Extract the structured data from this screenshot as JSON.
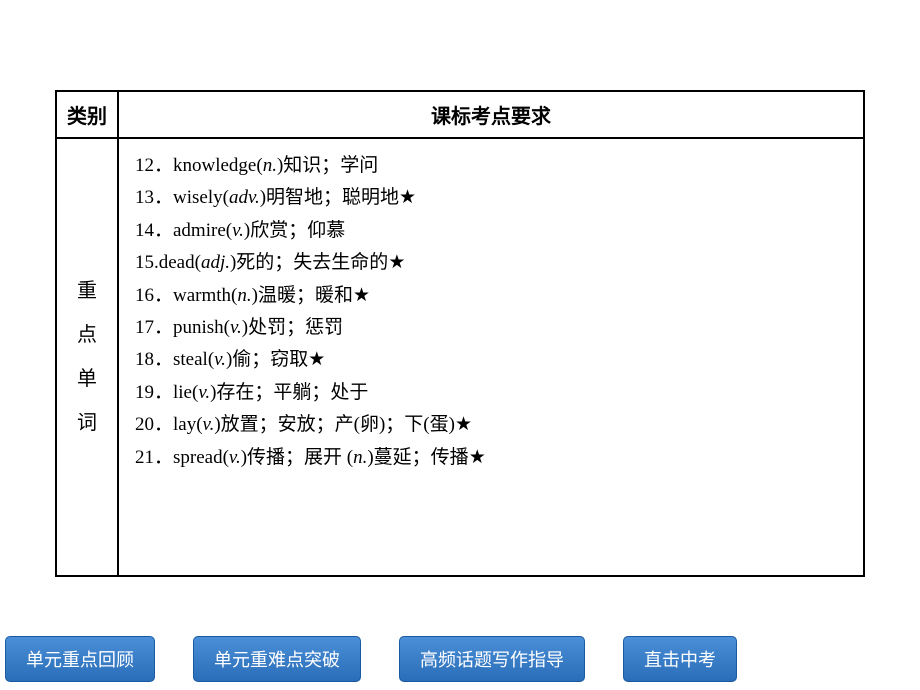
{
  "table": {
    "header": {
      "left": "类别",
      "right": "课标考点要求"
    },
    "category": [
      "重",
      "点",
      "单",
      "词"
    ],
    "items": [
      {
        "num": "12．",
        "word": "knowledge",
        "pos": "n.",
        "meaning": "知识；学问",
        "star": false
      },
      {
        "num": "13．",
        "word": "wisely",
        "pos": "adv.",
        "meaning": "明智地；聪明地",
        "star": true
      },
      {
        "num": "14．",
        "word": "admire",
        "pos": "v.",
        "meaning": "欣赏；仰慕",
        "star": false
      },
      {
        "num": "15.",
        "word": "dead",
        "pos": "adj.",
        "meaning": "死的；失去生命的",
        "star": true
      },
      {
        "num": "16．",
        "word": "warmth",
        "pos": "n.",
        "meaning": "温暖；暖和",
        "star": true
      },
      {
        "num": "17．",
        "word": "punish",
        "pos": "v.",
        "meaning": "处罚；惩罚",
        "star": false
      },
      {
        "num": "18．",
        "word": "steal",
        "pos": "v.",
        "meaning": "偷；窃取",
        "star": true
      },
      {
        "num": "19．",
        "word": "lie",
        "pos": "v.",
        "meaning": "存在；平躺；处于",
        "star": false
      },
      {
        "num": "20．",
        "word": "lay",
        "pos": "v.",
        "meaning": "放置；安放；产(卵)；下(蛋)",
        "star": true
      },
      {
        "num": "21．",
        "word": "spread",
        "pos": "v.",
        "meaning_v": "传播；展开",
        "pos2": "n.",
        "meaning_n": "蔓延；传播",
        "star": true
      }
    ]
  },
  "nav": {
    "buttons": [
      "单元重点回顾",
      "单元重难点突破",
      "高频话题写作指导",
      "直击中考"
    ]
  },
  "colors": {
    "border": "#000000",
    "background": "#ffffff",
    "button_gradient_top": "#4a8fd8",
    "button_gradient_bottom": "#2a6db8",
    "button_text": "#ffffff"
  }
}
